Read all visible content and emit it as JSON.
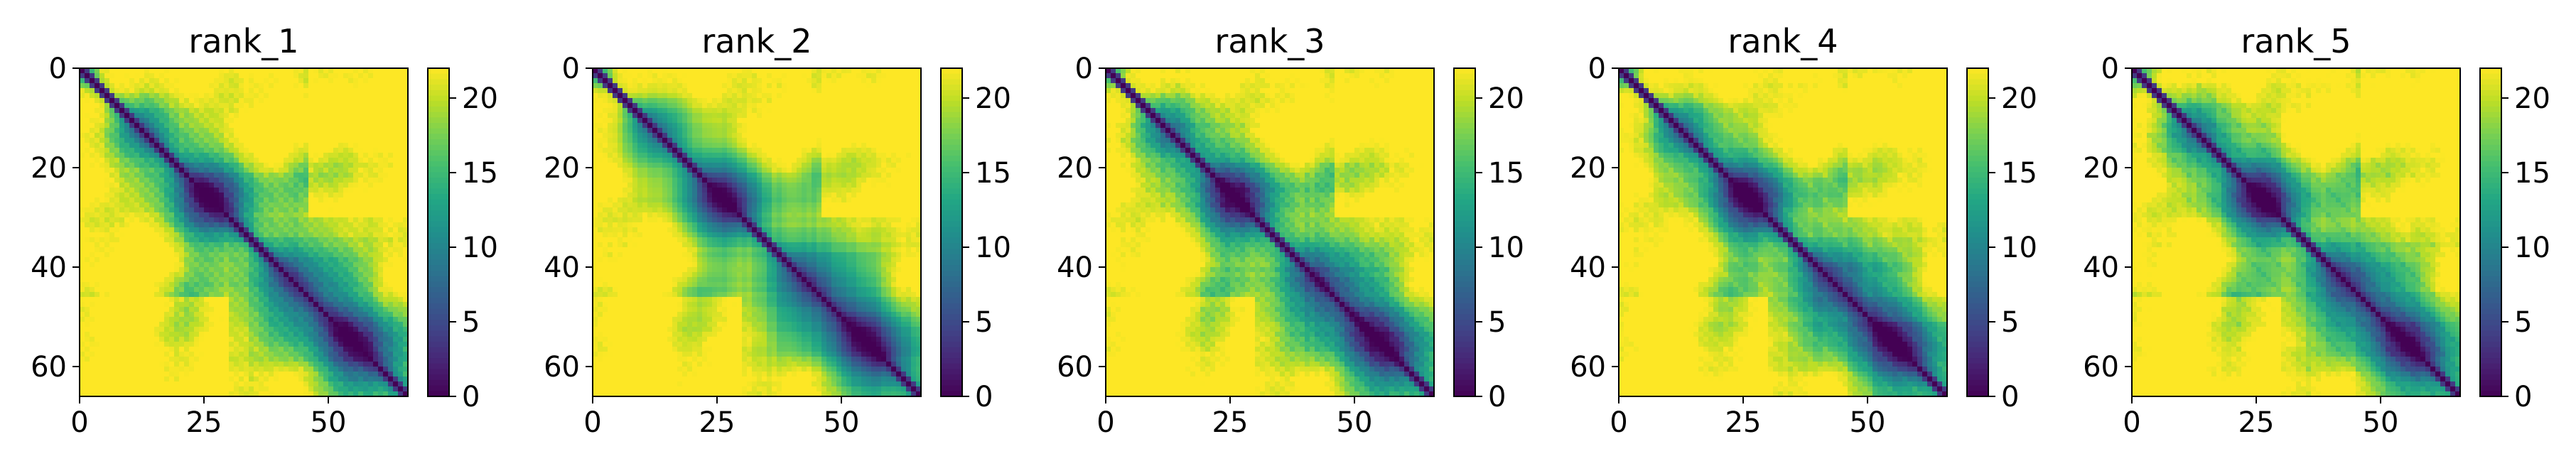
{
  "chart_data": {
    "type": "heatmap",
    "colormap": "viridis",
    "matrix_size": 66,
    "vmin": 0,
    "vmax": 22,
    "x_ticks": [
      0,
      25,
      50
    ],
    "y_ticks": [
      0,
      20,
      40,
      60
    ],
    "colorbar_ticks": [
      0,
      5,
      10,
      15,
      20
    ],
    "grid": false,
    "panels": [
      {
        "title": "rank_1",
        "seed": 11
      },
      {
        "title": "rank_2",
        "seed": 12
      },
      {
        "title": "rank_3",
        "seed": 13
      },
      {
        "title": "rank_4",
        "seed": 14
      },
      {
        "title": "rank_5",
        "seed": 15
      }
    ]
  }
}
